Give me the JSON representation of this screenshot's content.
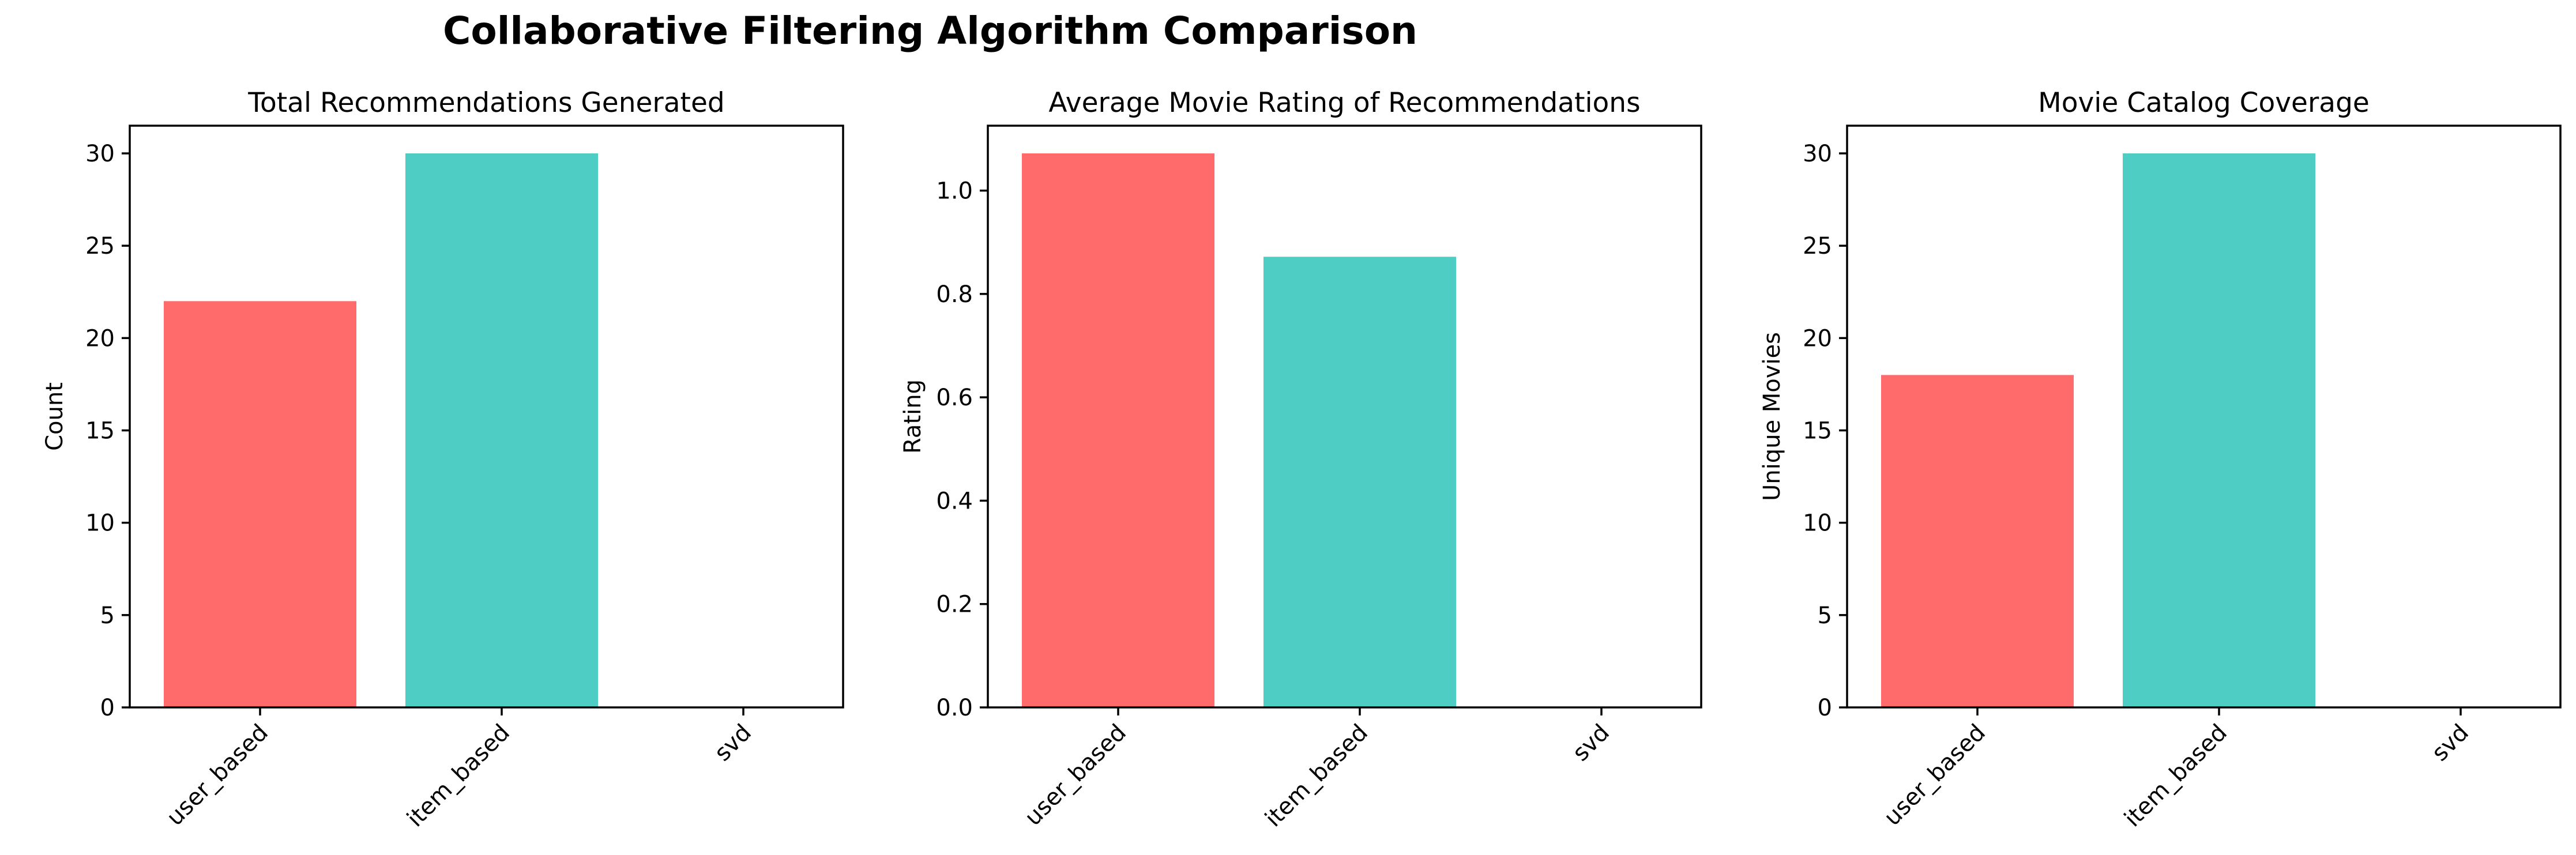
{
  "title": "Collaborative Filtering Algorithm Comparison",
  "colors": {
    "user_based": "#FF6B6B",
    "item_based": "#4ECDC4",
    "svd": "#45B7D1"
  },
  "chart_data": [
    {
      "type": "bar",
      "title": "Total Recommendations Generated",
      "xlabel": "",
      "ylabel": "Count",
      "categories": [
        "user_based",
        "item_based",
        "svd"
      ],
      "values": [
        22,
        30,
        0
      ],
      "ylim": [
        0,
        31.5
      ],
      "yticks": [
        0,
        5,
        10,
        15,
        20,
        25,
        30
      ],
      "ytick_labels": [
        "0",
        "5",
        "10",
        "15",
        "20",
        "25",
        "30"
      ]
    },
    {
      "type": "bar",
      "title": "Average Movie Rating of Recommendations",
      "xlabel": "",
      "ylabel": "Rating",
      "categories": [
        "user_based",
        "item_based",
        "svd"
      ],
      "values": [
        1.072,
        0.872,
        0
      ],
      "ylim": [
        0,
        1.1256
      ],
      "yticks": [
        0,
        0.2,
        0.4,
        0.6,
        0.8,
        1.0
      ],
      "ytick_labels": [
        "0.0",
        "0.2",
        "0.4",
        "0.6",
        "0.8",
        "1.0"
      ]
    },
    {
      "type": "bar",
      "title": "Movie Catalog Coverage",
      "xlabel": "",
      "ylabel": "Unique Movies",
      "categories": [
        "user_based",
        "item_based",
        "svd"
      ],
      "values": [
        18,
        30,
        0
      ],
      "ylim": [
        0,
        31.5
      ],
      "yticks": [
        0,
        5,
        10,
        15,
        20,
        25,
        30
      ],
      "ytick_labels": [
        "0",
        "5",
        "10",
        "15",
        "20",
        "25",
        "30"
      ]
    }
  ]
}
